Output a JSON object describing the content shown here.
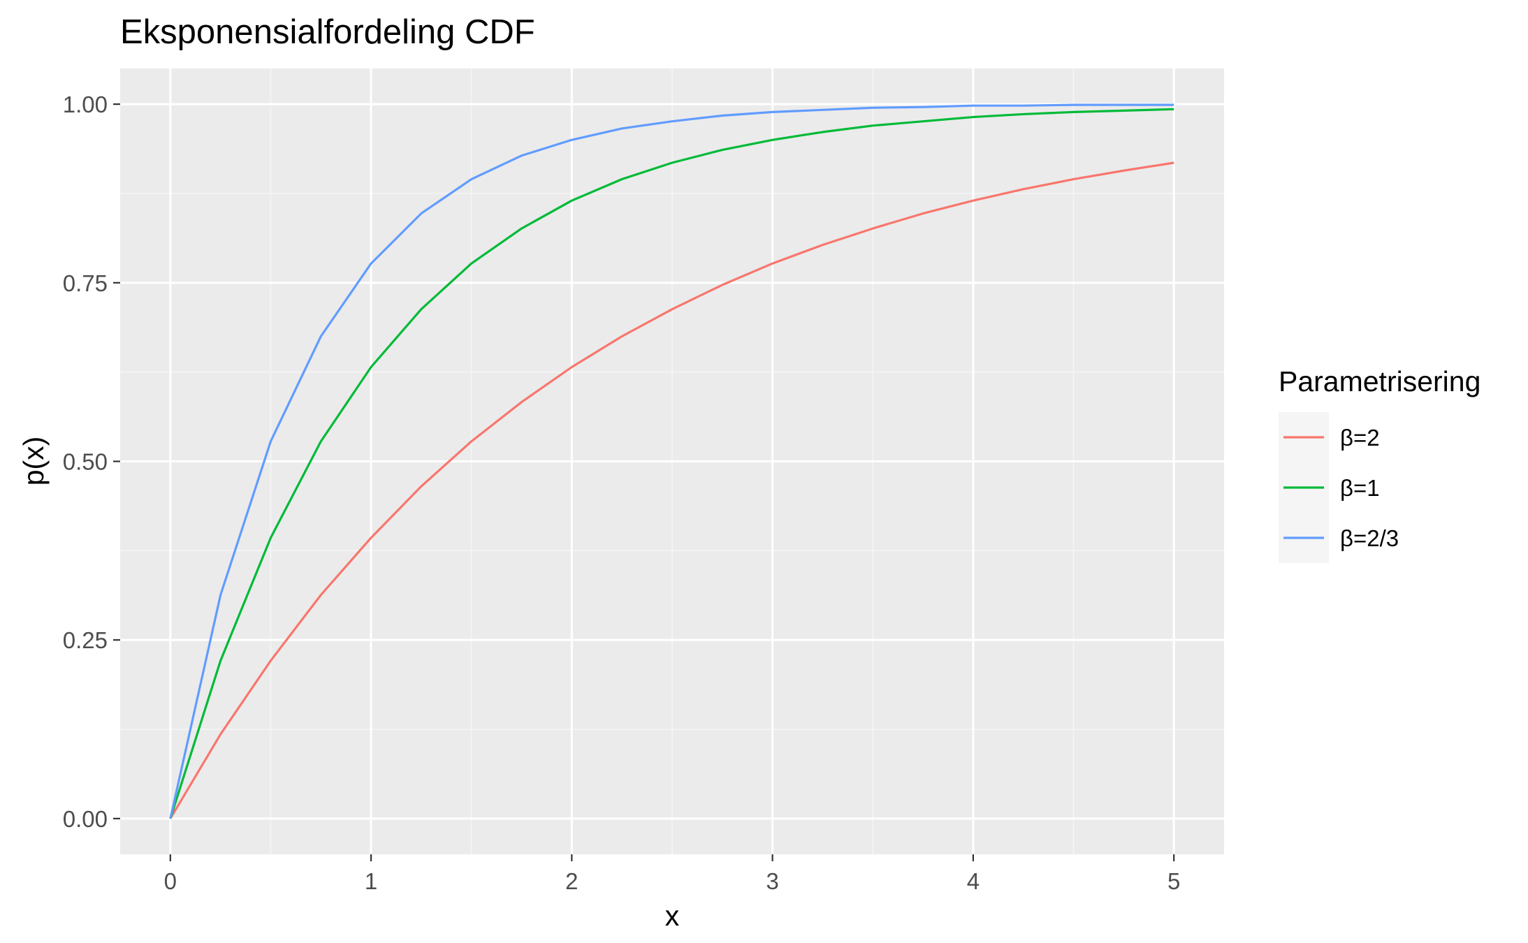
{
  "chart_data": {
    "type": "line",
    "title": "Eksponensialfordeling CDF",
    "xlabel": "x",
    "ylabel": "p(x)",
    "xlim": [
      -0.25,
      5.25
    ],
    "ylim": [
      -0.05,
      1.05
    ],
    "x_ticks": [
      0,
      1,
      2,
      3,
      4,
      5
    ],
    "x_tick_labels": [
      "0",
      "1",
      "2",
      "3",
      "4",
      "5"
    ],
    "y_ticks": [
      0,
      0.25,
      0.5,
      0.75,
      1.0
    ],
    "y_tick_labels": [
      "0.00",
      "0.25",
      "0.50",
      "0.75",
      "1.00"
    ],
    "x_minor_ticks": [
      0.5,
      1.5,
      2.5,
      3.5,
      4.5
    ],
    "y_minor_ticks": [
      0.125,
      0.375,
      0.625,
      0.875
    ],
    "grid": true,
    "legend": {
      "title": "Parametrisering",
      "placement": "right"
    },
    "x": [
      0,
      0.25,
      0.5,
      0.75,
      1,
      1.25,
      1.5,
      1.75,
      2,
      2.25,
      2.5,
      2.75,
      3,
      3.25,
      3.5,
      3.75,
      4,
      4.25,
      4.5,
      4.75,
      5
    ],
    "series": [
      {
        "name": "β=2",
        "color": "#F8766D",
        "values": [
          0,
          0.118,
          0.221,
          0.313,
          0.393,
          0.465,
          0.528,
          0.583,
          0.632,
          0.675,
          0.713,
          0.747,
          0.777,
          0.803,
          0.826,
          0.847,
          0.865,
          0.881,
          0.895,
          0.907,
          0.918
        ]
      },
      {
        "name": "β=1",
        "color": "#00BA38",
        "values": [
          0,
          0.221,
          0.393,
          0.528,
          0.632,
          0.713,
          0.777,
          0.826,
          0.865,
          0.895,
          0.918,
          0.936,
          0.95,
          0.961,
          0.97,
          0.976,
          0.982,
          0.986,
          0.989,
          0.991,
          0.993
        ]
      },
      {
        "name": "β=2/3",
        "color": "#619CFF",
        "values": [
          0,
          0.313,
          0.528,
          0.675,
          0.777,
          0.847,
          0.895,
          0.928,
          0.95,
          0.966,
          0.976,
          0.984,
          0.989,
          0.992,
          0.995,
          0.996,
          0.998,
          0.998,
          0.999,
          0.999,
          0.999
        ]
      }
    ]
  },
  "style": {
    "panel_background": "#EBEBEB",
    "grid_major_color": "#FFFFFF",
    "grid_minor_color": "#F5F5F5",
    "tick_color": "#333333"
  }
}
